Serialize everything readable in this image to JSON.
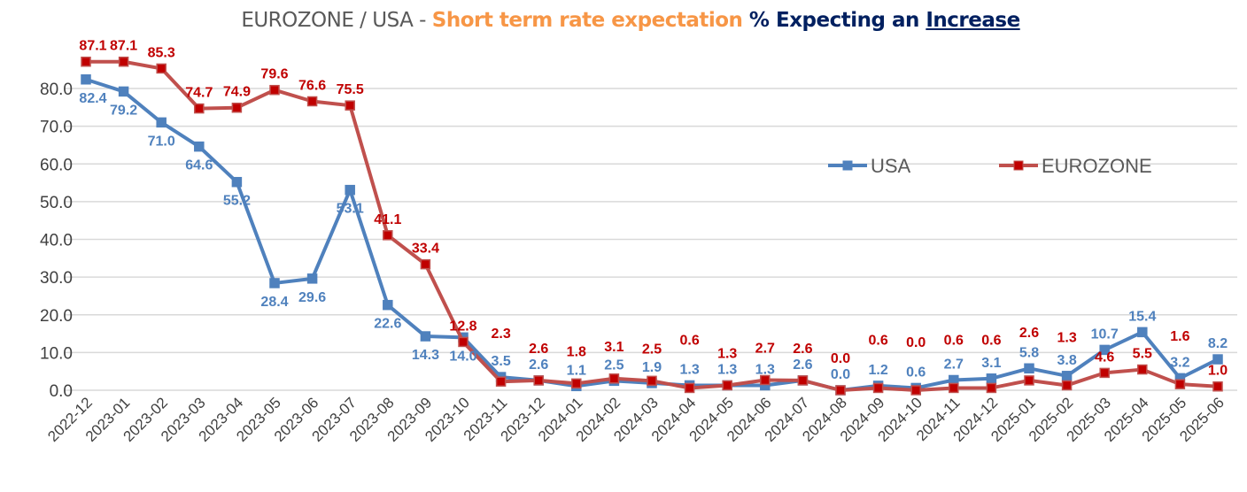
{
  "title": {
    "part1": "EUROZONE / USA - ",
    "part2": "Short term rate expectation",
    "part3": " % Expecting an ",
    "part4": "Increase"
  },
  "chart_data": {
    "type": "line",
    "categories": [
      "2022-12",
      "2023-01",
      "2023-02",
      "2023-03",
      "2023-04",
      "2023-05",
      "2023-06",
      "2023-07",
      "2023-08",
      "2023-09",
      "2023-10",
      "2023-11",
      "2023-12",
      "2024-01",
      "2024-02",
      "2024-03",
      "2024-04",
      "2024-05",
      "2024-06",
      "2024-07",
      "2024-08",
      "2024-09",
      "2024-10",
      "2024-11",
      "2024-12",
      "2025-01",
      "2025-02",
      "2025-03",
      "2025-04",
      "2025-05",
      "2025-06"
    ],
    "series": [
      {
        "name": "USA",
        "color": "#4f81bd",
        "label_color": "#4f81bd",
        "values": [
          82.4,
          79.2,
          71.0,
          64.6,
          55.2,
          28.4,
          29.6,
          53.1,
          22.6,
          14.3,
          14.0,
          3.5,
          2.6,
          1.1,
          2.5,
          1.9,
          1.3,
          1.3,
          1.3,
          2.6,
          0.0,
          1.2,
          0.6,
          2.7,
          3.1,
          5.8,
          3.8,
          10.7,
          15.4,
          3.2,
          8.2
        ]
      },
      {
        "name": "EUROZONE",
        "color": "#c0504d",
        "label_color": "#c00000",
        "values": [
          87.1,
          87.1,
          85.3,
          74.7,
          74.9,
          79.6,
          76.6,
          75.5,
          41.1,
          33.4,
          12.8,
          2.3,
          2.6,
          1.8,
          3.1,
          2.5,
          0.6,
          1.3,
          2.7,
          2.6,
          0.0,
          0.6,
          0.0,
          0.6,
          0.6,
          2.6,
          1.3,
          4.6,
          5.5,
          1.6,
          1.0
        ]
      }
    ],
    "yticks": [
      "0.0",
      "10.0",
      "20.0",
      "30.0",
      "40.0",
      "50.0",
      "60.0",
      "70.0",
      "80.0"
    ],
    "ylim": [
      0,
      90
    ],
    "grid": true,
    "legend": "right-center"
  }
}
